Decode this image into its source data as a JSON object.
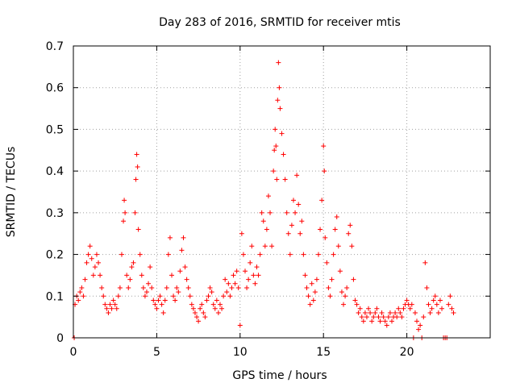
{
  "chart_data": {
    "type": "scatter",
    "title": "Day 283 of 2016, SRMTID for receiver mtis",
    "xlabel": "GPS time / hours",
    "ylabel": "SRMTID / TECUs",
    "xlim": [
      0,
      25
    ],
    "ylim": [
      0,
      0.7
    ],
    "xticks": [
      0,
      5,
      10,
      15,
      20
    ],
    "yticks": [
      0,
      0.1,
      0.2,
      0.3,
      0.4,
      0.5,
      0.6,
      0.7
    ],
    "xtick_labels": [
      "0",
      "5",
      "10",
      "15",
      "20"
    ],
    "ytick_labels": [
      "0",
      "0.1",
      "0.2",
      "0.3",
      "0.4",
      "0.5",
      "0.6",
      "0.7"
    ],
    "grid": true,
    "marker": "+",
    "color": "#ff0000",
    "series": [
      {
        "name": "SRMTID",
        "points": [
          [
            0.05,
            0.0
          ],
          [
            0.1,
            0.08
          ],
          [
            0.2,
            0.1
          ],
          [
            0.3,
            0.09
          ],
          [
            0.4,
            0.11
          ],
          [
            0.5,
            0.12
          ],
          [
            0.6,
            0.1
          ],
          [
            0.7,
            0.14
          ],
          [
            0.8,
            0.18
          ],
          [
            0.9,
            0.2
          ],
          [
            1.0,
            0.22
          ],
          [
            1.1,
            0.19
          ],
          [
            1.2,
            0.15
          ],
          [
            1.3,
            0.17
          ],
          [
            1.4,
            0.2
          ],
          [
            1.5,
            0.18
          ],
          [
            1.6,
            0.15
          ],
          [
            1.7,
            0.12
          ],
          [
            1.8,
            0.1
          ],
          [
            1.9,
            0.08
          ],
          [
            2.0,
            0.07
          ],
          [
            2.1,
            0.06
          ],
          [
            2.2,
            0.08
          ],
          [
            2.3,
            0.07
          ],
          [
            2.4,
            0.09
          ],
          [
            2.5,
            0.08
          ],
          [
            2.6,
            0.07
          ],
          [
            2.7,
            0.1
          ],
          [
            2.8,
            0.12
          ],
          [
            2.9,
            0.2
          ],
          [
            3.0,
            0.28
          ],
          [
            3.05,
            0.33
          ],
          [
            3.1,
            0.3
          ],
          [
            3.2,
            0.15
          ],
          [
            3.3,
            0.12
          ],
          [
            3.4,
            0.14
          ],
          [
            3.5,
            0.17
          ],
          [
            3.6,
            0.18
          ],
          [
            3.7,
            0.3
          ],
          [
            3.75,
            0.38
          ],
          [
            3.8,
            0.44
          ],
          [
            3.85,
            0.41
          ],
          [
            3.9,
            0.26
          ],
          [
            4.0,
            0.2
          ],
          [
            4.1,
            0.15
          ],
          [
            4.2,
            0.12
          ],
          [
            4.3,
            0.1
          ],
          [
            4.4,
            0.11
          ],
          [
            4.5,
            0.13
          ],
          [
            4.6,
            0.17
          ],
          [
            4.7,
            0.12
          ],
          [
            4.8,
            0.09
          ],
          [
            4.9,
            0.08
          ],
          [
            5.0,
            0.07
          ],
          [
            5.1,
            0.09
          ],
          [
            5.2,
            0.1
          ],
          [
            5.3,
            0.08
          ],
          [
            5.4,
            0.06
          ],
          [
            5.5,
            0.09
          ],
          [
            5.6,
            0.12
          ],
          [
            5.7,
            0.2
          ],
          [
            5.8,
            0.24
          ],
          [
            5.9,
            0.15
          ],
          [
            6.0,
            0.1
          ],
          [
            6.1,
            0.09
          ],
          [
            6.2,
            0.12
          ],
          [
            6.3,
            0.11
          ],
          [
            6.4,
            0.16
          ],
          [
            6.5,
            0.21
          ],
          [
            6.6,
            0.24
          ],
          [
            6.7,
            0.17
          ],
          [
            6.8,
            0.14
          ],
          [
            6.9,
            0.12
          ],
          [
            7.0,
            0.1
          ],
          [
            7.1,
            0.08
          ],
          [
            7.2,
            0.07
          ],
          [
            7.3,
            0.06
          ],
          [
            7.4,
            0.05
          ],
          [
            7.5,
            0.04
          ],
          [
            7.6,
            0.07
          ],
          [
            7.7,
            0.08
          ],
          [
            7.8,
            0.06
          ],
          [
            7.9,
            0.05
          ],
          [
            8.0,
            0.09
          ],
          [
            8.1,
            0.1
          ],
          [
            8.2,
            0.12
          ],
          [
            8.3,
            0.11
          ],
          [
            8.4,
            0.08
          ],
          [
            8.5,
            0.07
          ],
          [
            8.6,
            0.09
          ],
          [
            8.7,
            0.06
          ],
          [
            8.8,
            0.08
          ],
          [
            8.9,
            0.07
          ],
          [
            9.0,
            0.1
          ],
          [
            9.1,
            0.14
          ],
          [
            9.2,
            0.11
          ],
          [
            9.3,
            0.13
          ],
          [
            9.4,
            0.1
          ],
          [
            9.5,
            0.12
          ],
          [
            9.6,
            0.15
          ],
          [
            9.7,
            0.13
          ],
          [
            9.8,
            0.16
          ],
          [
            9.9,
            0.12
          ],
          [
            10.0,
            0.03
          ],
          [
            10.1,
            0.25
          ],
          [
            10.2,
            0.2
          ],
          [
            10.3,
            0.16
          ],
          [
            10.4,
            0.12
          ],
          [
            10.5,
            0.14
          ],
          [
            10.6,
            0.18
          ],
          [
            10.7,
            0.22
          ],
          [
            10.8,
            0.15
          ],
          [
            10.9,
            0.13
          ],
          [
            11.0,
            0.17
          ],
          [
            11.1,
            0.15
          ],
          [
            11.2,
            0.2
          ],
          [
            11.3,
            0.3
          ],
          [
            11.4,
            0.28
          ],
          [
            11.5,
            0.22
          ],
          [
            11.6,
            0.26
          ],
          [
            11.7,
            0.34
          ],
          [
            11.8,
            0.3
          ],
          [
            11.9,
            0.22
          ],
          [
            12.0,
            0.4
          ],
          [
            12.05,
            0.45
          ],
          [
            12.1,
            0.5
          ],
          [
            12.15,
            0.46
          ],
          [
            12.2,
            0.38
          ],
          [
            12.25,
            0.57
          ],
          [
            12.3,
            0.66
          ],
          [
            12.35,
            0.6
          ],
          [
            12.4,
            0.55
          ],
          [
            12.5,
            0.49
          ],
          [
            12.6,
            0.44
          ],
          [
            12.7,
            0.38
          ],
          [
            12.8,
            0.3
          ],
          [
            12.9,
            0.25
          ],
          [
            13.0,
            0.2
          ],
          [
            13.1,
            0.27
          ],
          [
            13.2,
            0.33
          ],
          [
            13.3,
            0.3
          ],
          [
            13.4,
            0.39
          ],
          [
            13.5,
            0.32
          ],
          [
            13.6,
            0.25
          ],
          [
            13.7,
            0.28
          ],
          [
            13.8,
            0.2
          ],
          [
            13.9,
            0.15
          ],
          [
            14.0,
            0.12
          ],
          [
            14.1,
            0.1
          ],
          [
            14.2,
            0.08
          ],
          [
            14.3,
            0.13
          ],
          [
            14.4,
            0.09
          ],
          [
            14.5,
            0.11
          ],
          [
            14.6,
            0.14
          ],
          [
            14.7,
            0.2
          ],
          [
            14.8,
            0.26
          ],
          [
            14.9,
            0.33
          ],
          [
            15.0,
            0.46
          ],
          [
            15.05,
            0.4
          ],
          [
            15.1,
            0.24
          ],
          [
            15.2,
            0.18
          ],
          [
            15.3,
            0.12
          ],
          [
            15.4,
            0.1
          ],
          [
            15.5,
            0.14
          ],
          [
            15.6,
            0.2
          ],
          [
            15.7,
            0.26
          ],
          [
            15.8,
            0.29
          ],
          [
            15.9,
            0.22
          ],
          [
            16.0,
            0.16
          ],
          [
            16.1,
            0.11
          ],
          [
            16.2,
            0.08
          ],
          [
            16.3,
            0.1
          ],
          [
            16.4,
            0.12
          ],
          [
            16.5,
            0.25
          ],
          [
            16.6,
            0.27
          ],
          [
            16.7,
            0.22
          ],
          [
            16.8,
            0.14
          ],
          [
            16.9,
            0.09
          ],
          [
            17.0,
            0.08
          ],
          [
            17.1,
            0.06
          ],
          [
            17.2,
            0.07
          ],
          [
            17.3,
            0.05
          ],
          [
            17.4,
            0.04
          ],
          [
            17.5,
            0.06
          ],
          [
            17.6,
            0.05
          ],
          [
            17.7,
            0.07
          ],
          [
            17.8,
            0.06
          ],
          [
            17.9,
            0.04
          ],
          [
            18.0,
            0.05
          ],
          [
            18.1,
            0.06
          ],
          [
            18.2,
            0.07
          ],
          [
            18.3,
            0.05
          ],
          [
            18.4,
            0.04
          ],
          [
            18.5,
            0.06
          ],
          [
            18.6,
            0.05
          ],
          [
            18.7,
            0.04
          ],
          [
            18.8,
            0.03
          ],
          [
            18.9,
            0.05
          ],
          [
            19.0,
            0.06
          ],
          [
            19.1,
            0.04
          ],
          [
            19.2,
            0.05
          ],
          [
            19.3,
            0.06
          ],
          [
            19.4,
            0.05
          ],
          [
            19.5,
            0.07
          ],
          [
            19.6,
            0.06
          ],
          [
            19.7,
            0.05
          ],
          [
            19.8,
            0.07
          ],
          [
            19.9,
            0.08
          ],
          [
            20.0,
            0.09
          ],
          [
            20.1,
            0.08
          ],
          [
            20.2,
            0.07
          ],
          [
            20.3,
            0.08
          ],
          [
            20.4,
            0.0
          ],
          [
            20.5,
            0.06
          ],
          [
            20.6,
            0.04
          ],
          [
            20.7,
            0.02
          ],
          [
            20.8,
            0.03
          ],
          [
            20.9,
            0.0
          ],
          [
            21.0,
            0.05
          ],
          [
            21.1,
            0.18
          ],
          [
            21.2,
            0.12
          ],
          [
            21.3,
            0.08
          ],
          [
            21.4,
            0.06
          ],
          [
            21.5,
            0.07
          ],
          [
            21.6,
            0.09
          ],
          [
            21.7,
            0.1
          ],
          [
            21.8,
            0.08
          ],
          [
            21.9,
            0.06
          ],
          [
            22.0,
            0.09
          ],
          [
            22.1,
            0.07
          ],
          [
            22.2,
            0.0
          ],
          [
            22.3,
            0.0
          ],
          [
            22.4,
            0.0
          ],
          [
            22.5,
            0.08
          ],
          [
            22.6,
            0.1
          ],
          [
            22.7,
            0.07
          ],
          [
            22.8,
            0.06
          ]
        ]
      }
    ]
  }
}
